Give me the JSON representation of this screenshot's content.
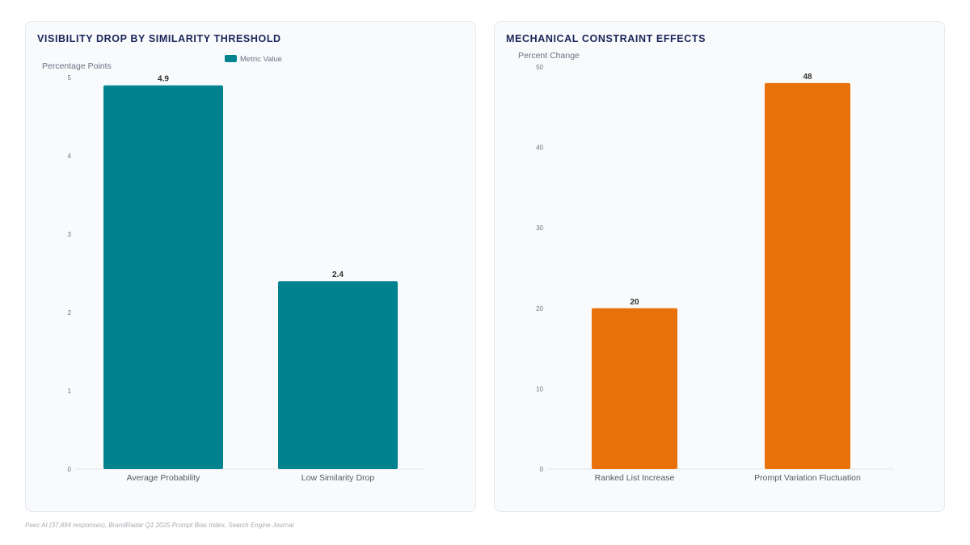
{
  "chart_data": [
    {
      "type": "bar",
      "title": "VISIBILITY DROP BY SIMILARITY THRESHOLD",
      "ylabel": "Percentage Points",
      "xlabel": "",
      "categories": [
        "Average Probability",
        "Low Similarity Drop"
      ],
      "series": [
        {
          "name": "Metric Value",
          "values": [
            4.9,
            2.4
          ],
          "color": "#00838f"
        }
      ],
      "ylim": [
        0,
        5
      ],
      "yticks": [
        0,
        1,
        2,
        3,
        4,
        5
      ],
      "legend": "top-center",
      "grid": false,
      "data_labels": true
    },
    {
      "type": "bar",
      "title": "MECHANICAL CONSTRAINT EFFECTS",
      "ylabel": "Percent Change",
      "xlabel": "",
      "categories": [
        "Ranked List Increase",
        "Prompt Variation Fluctuation"
      ],
      "series": [
        {
          "values": [
            20,
            48
          ],
          "color": "#e8710a"
        }
      ],
      "ylim": [
        0,
        50
      ],
      "yticks": [
        0,
        10,
        20,
        30,
        40,
        50
      ],
      "legend": "none",
      "grid": false,
      "data_labels": true
    }
  ],
  "source": "Peec AI (37,894 responses), BrandRadar Q1 2025 Prompt Bias Index, Search Engine Journal"
}
